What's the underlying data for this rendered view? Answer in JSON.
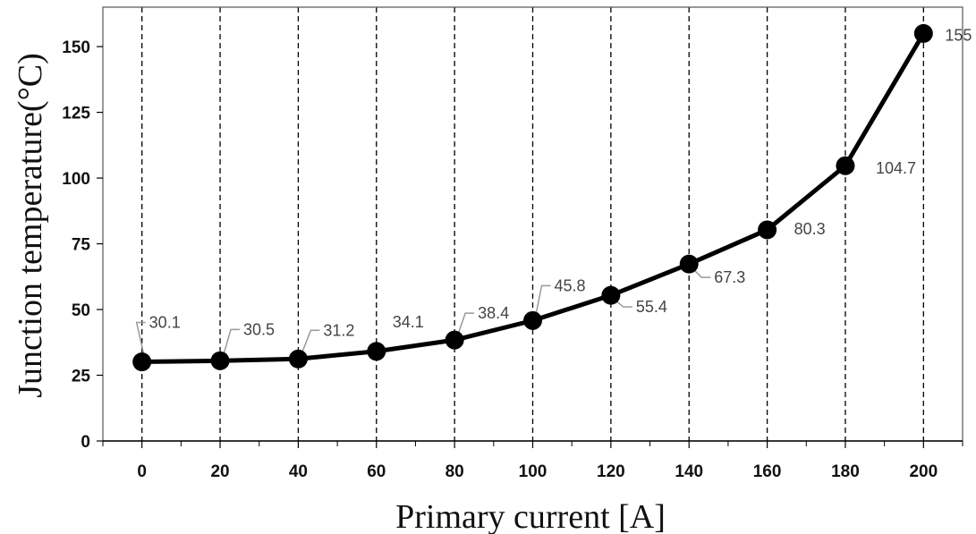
{
  "chart_data": {
    "type": "line",
    "xlabel": "Primary current [A]",
    "ylabel": "Junction temperature(°C)",
    "x": [
      0,
      20,
      40,
      60,
      80,
      100,
      120,
      140,
      160,
      180,
      200
    ],
    "series": [
      {
        "values": [
          30.1,
          30.5,
          31.2,
          34.1,
          38.4,
          45.8,
          55.4,
          67.3,
          80.3,
          104.7,
          155
        ]
      }
    ],
    "data_labels": [
      "30.1",
      "30.5",
      "31.2",
      "34.1",
      "38.4",
      "45.8",
      "55.4",
      "67.3",
      "80.3",
      "104.7",
      "155"
    ],
    "xticks": [
      "0",
      "20",
      "40",
      "60",
      "80",
      "100",
      "120",
      "140",
      "160",
      "180",
      "200"
    ],
    "yticks": [
      "0",
      "25",
      "50",
      "75",
      "100",
      "125",
      "150"
    ],
    "xlim": [
      -10,
      210
    ],
    "ylim": [
      0,
      165
    ],
    "grid": "vertical dashed lines at each x tick",
    "line_color": "#000000",
    "marker_color": "#000000"
  }
}
